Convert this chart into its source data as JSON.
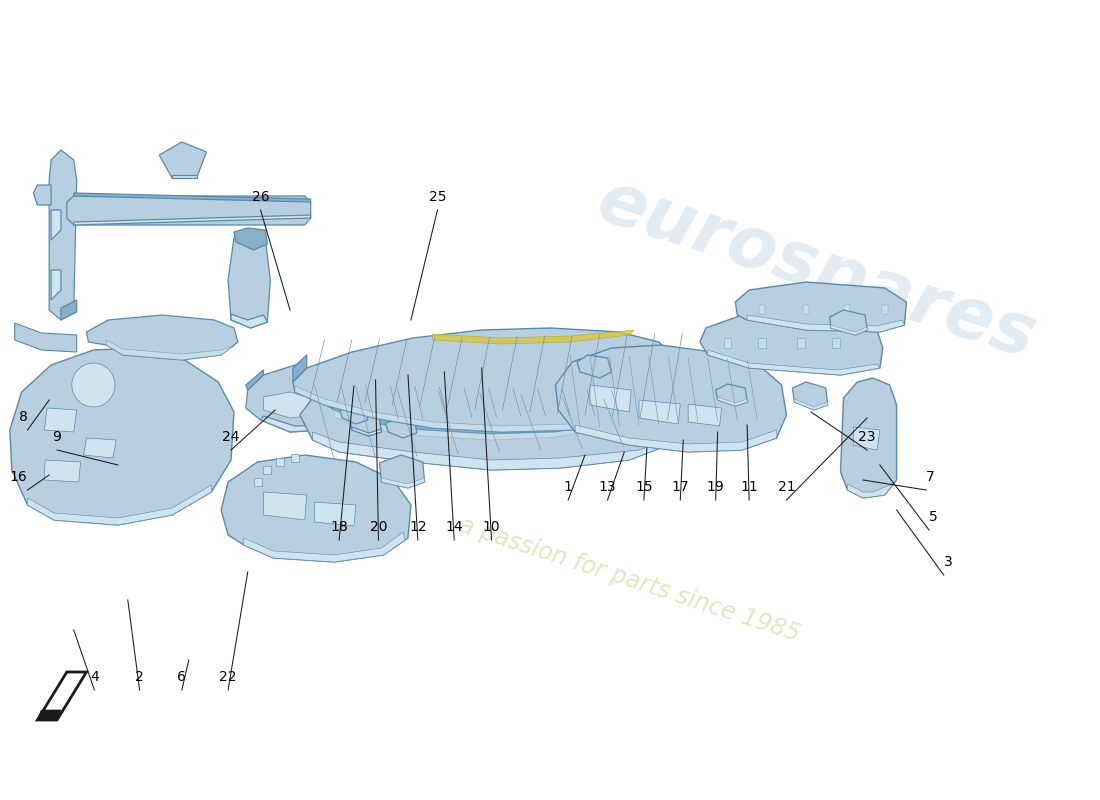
{
  "background_color": "#ffffff",
  "part_color": "#b8cfe0",
  "part_edge_color": "#5a8aaa",
  "part_dark": "#8aafc8",
  "part_light": "#d0e4f0",
  "line_color": "#1a1a1a",
  "text_color": "#000000",
  "wm1": "eurospares",
  "wm2": "a passion for parts since 1985"
}
